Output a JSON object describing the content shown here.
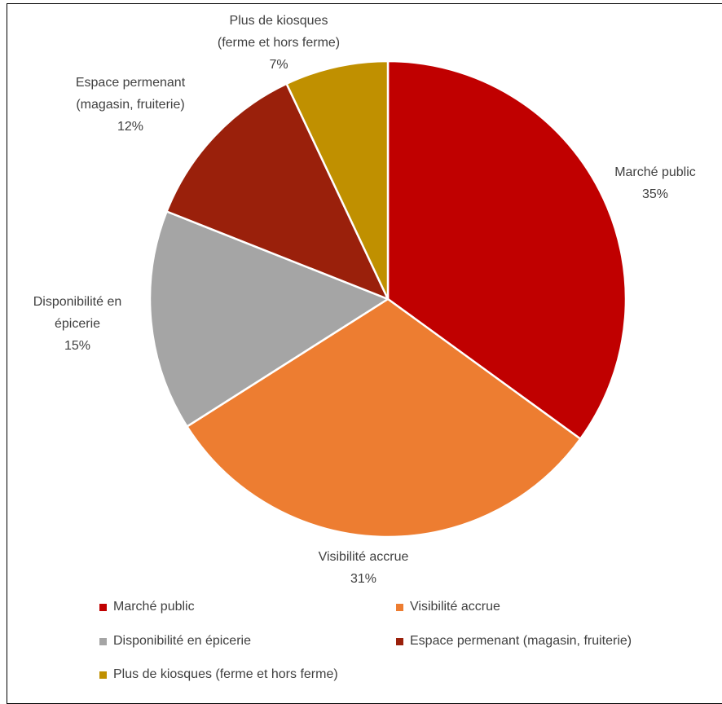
{
  "chart_data": {
    "type": "pie",
    "title": "",
    "slices": [
      {
        "name": "Marché public",
        "value": 35,
        "label_lines": [
          "Marché public",
          "35%"
        ],
        "color": "#C00000"
      },
      {
        "name": "Visibilité accrue",
        "value": 31,
        "label_lines": [
          "Visibilité accrue",
          "31%"
        ],
        "color": "#ED7D31"
      },
      {
        "name": "Disponibilité en épicerie",
        "value": 15,
        "label_lines": [
          "Disponibilité en",
          "épicerie",
          "15%"
        ],
        "color": "#A5A5A5"
      },
      {
        "name": "Espace permenant (magasin, fruiterie)",
        "value": 12,
        "label_lines": [
          "Espace permenant",
          "(magasin, fruiterie)",
          "12%"
        ],
        "color": "#9A200B"
      },
      {
        "name": "Plus de kiosques (ferme et hors ferme)",
        "value": 7,
        "label_lines": [
          "Plus de kiosques",
          "(ferme et hors ferme)",
          "7%"
        ],
        "color": "#C09000"
      }
    ],
    "legend": {
      "position": "bottom",
      "entries": [
        "Marché public",
        "Visibilité accrue",
        "Disponibilité en épicerie",
        "Espace permenant (magasin, fruiterie)",
        "Plus de kiosques (ferme et hors ferme)"
      ]
    }
  }
}
